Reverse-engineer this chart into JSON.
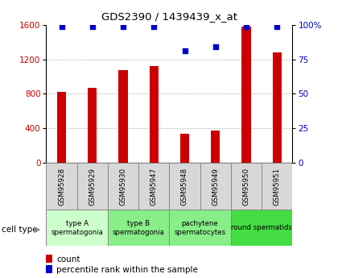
{
  "title": "GDS2390 / 1439439_x_at",
  "samples": [
    "GSM95928",
    "GSM95929",
    "GSM95930",
    "GSM95947",
    "GSM95948",
    "GSM95949",
    "GSM95950",
    "GSM95951"
  ],
  "counts": [
    820,
    870,
    1080,
    1120,
    340,
    370,
    1580,
    1280
  ],
  "percentile_ranks": [
    99,
    99,
    99,
    99,
    81,
    84,
    99,
    99
  ],
  "ylim_left": [
    0,
    1600
  ],
  "ylim_right": [
    0,
    100
  ],
  "yticks_left": [
    0,
    400,
    800,
    1200,
    1600
  ],
  "yticks_right": [
    0,
    25,
    50,
    75,
    100
  ],
  "bar_color": "#cc0000",
  "dot_color": "#0000cc",
  "grid_color": "#aaaaaa",
  "cell_groups": [
    {
      "label": "type A\nspermatogonia",
      "samples": [
        0,
        1
      ],
      "color": "#ccffcc"
    },
    {
      "label": "type B\nspermatogonia",
      "samples": [
        2,
        3
      ],
      "color": "#88ee88"
    },
    {
      "label": "pachytene\nspermatocytes",
      "samples": [
        4,
        5
      ],
      "color": "#88ee88"
    },
    {
      "label": "round spermatids",
      "samples": [
        6,
        7
      ],
      "color": "#44dd44"
    }
  ],
  "cell_type_label": "cell type",
  "legend_count_label": "count",
  "legend_pct_label": "percentile rank within the sample",
  "tick_label_color_left": "#cc0000",
  "tick_label_color_right": "#0000cc",
  "bar_width": 0.3,
  "sample_box_color": "#d8d8d8",
  "fig_bg": "#ffffff"
}
